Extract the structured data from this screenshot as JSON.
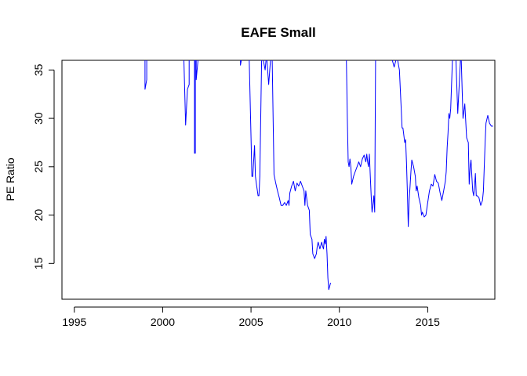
{
  "chart_data": {
    "type": "line",
    "title": "EAFE Small",
    "xlabel": "",
    "ylabel": "PE Ratio",
    "xlim": [
      1994.3,
      2018.8
    ],
    "ylim": [
      11.3,
      36.0
    ],
    "xticks": [
      1995,
      2000,
      2005,
      2010,
      2015
    ],
    "yticks": [
      15,
      20,
      25,
      30,
      35
    ],
    "grid": false,
    "series": [
      {
        "color": "#0000ff",
        "segments": [
          [
            [
              1999.0,
              36.0
            ],
            [
              1999.0,
              33.0
            ],
            [
              1999.1,
              34.0
            ],
            [
              1999.1,
              36.0
            ]
          ],
          [
            [
              2001.2,
              36.0
            ],
            [
              2001.3,
              29.3
            ],
            [
              2001.4,
              33.0
            ],
            [
              2001.5,
              33.5
            ],
            [
              2001.5,
              36.0
            ]
          ],
          [
            [
              2001.8,
              36.0
            ],
            [
              2001.8,
              26.4
            ],
            [
              2001.85,
              26.4
            ],
            [
              2001.85,
              36.0
            ]
          ],
          [
            [
              2001.9,
              36.0
            ],
            [
              2001.9,
              34.0
            ],
            [
              2002.0,
              36.0
            ]
          ],
          [
            [
              2004.4,
              36.0
            ],
            [
              2004.4,
              35.5
            ],
            [
              2004.45,
              36.0
            ]
          ],
          [
            [
              2004.9,
              36.0
            ],
            [
              2005.0,
              28.0
            ],
            [
              2005.05,
              24.0
            ],
            [
              2005.1,
              24.0
            ],
            [
              2005.2,
              27.2
            ],
            [
              2005.25,
              24.0
            ],
            [
              2005.3,
              23.3
            ],
            [
              2005.4,
              22.0
            ],
            [
              2005.45,
              22.0
            ],
            [
              2005.5,
              24.0
            ],
            [
              2005.6,
              36.0
            ]
          ],
          [
            [
              2005.7,
              36.0
            ],
            [
              2005.8,
              35.0
            ],
            [
              2005.85,
              36.0
            ]
          ],
          [
            [
              2005.9,
              36.0
            ],
            [
              2006.0,
              33.5
            ],
            [
              2006.1,
              36.0
            ]
          ],
          [
            [
              2006.2,
              36.0
            ],
            [
              2006.3,
              24.2
            ],
            [
              2006.4,
              23.3
            ],
            [
              2006.5,
              22.5
            ],
            [
              2006.6,
              21.8
            ],
            [
              2006.7,
              21.0
            ],
            [
              2006.8,
              21.0
            ],
            [
              2006.9,
              21.3
            ],
            [
              2007.0,
              21.0
            ],
            [
              2007.1,
              21.5
            ],
            [
              2007.15,
              21.0
            ],
            [
              2007.2,
              22.3
            ],
            [
              2007.3,
              23.0
            ],
            [
              2007.4,
              23.5
            ],
            [
              2007.5,
              22.5
            ],
            [
              2007.6,
              23.3
            ],
            [
              2007.7,
              23.0
            ],
            [
              2007.8,
              23.5
            ],
            [
              2007.9,
              23.0
            ],
            [
              2008.0,
              22.5
            ],
            [
              2008.05,
              21.0
            ],
            [
              2008.1,
              22.5
            ],
            [
              2008.2,
              21.0
            ],
            [
              2008.3,
              20.5
            ],
            [
              2008.35,
              18.0
            ],
            [
              2008.45,
              17.5
            ],
            [
              2008.5,
              16.0
            ],
            [
              2008.6,
              15.5
            ],
            [
              2008.7,
              16.0
            ],
            [
              2008.75,
              16.8
            ],
            [
              2008.8,
              17.2
            ],
            [
              2008.9,
              16.5
            ],
            [
              2009.0,
              17.2
            ],
            [
              2009.05,
              16.8
            ],
            [
              2009.1,
              16.5
            ],
            [
              2009.15,
              17.5
            ],
            [
              2009.2,
              17.0
            ],
            [
              2009.25,
              17.8
            ],
            [
              2009.3,
              16.0
            ],
            [
              2009.35,
              13.5
            ],
            [
              2009.4,
              12.3
            ],
            [
              2009.45,
              12.6
            ],
            [
              2009.5,
              13.0
            ]
          ],
          [
            [
              2010.4,
              36.0
            ],
            [
              2010.45,
              30.0
            ],
            [
              2010.5,
              25.5
            ],
            [
              2010.55,
              25.0
            ],
            [
              2010.6,
              25.8
            ],
            [
              2010.65,
              25.0
            ],
            [
              2010.7,
              23.2
            ],
            [
              2010.8,
              24.0
            ],
            [
              2010.9,
              24.5
            ],
            [
              2011.0,
              25.0
            ],
            [
              2011.1,
              25.5
            ],
            [
              2011.2,
              25.0
            ],
            [
              2011.3,
              25.8
            ],
            [
              2011.4,
              26.2
            ],
            [
              2011.5,
              25.5
            ],
            [
              2011.55,
              26.3
            ],
            [
              2011.6,
              25.5
            ],
            [
              2011.65,
              25.0
            ],
            [
              2011.7,
              26.3
            ],
            [
              2011.75,
              24.0
            ],
            [
              2011.8,
              22.0
            ],
            [
              2011.85,
              20.3
            ],
            [
              2011.9,
              21.0
            ],
            [
              2011.95,
              22.0
            ],
            [
              2012.0,
              20.3
            ],
            [
              2012.05,
              36.0
            ]
          ],
          [
            [
              2013.0,
              36.0
            ],
            [
              2013.1,
              35.3
            ],
            [
              2013.2,
              36.0
            ]
          ],
          [
            [
              2013.3,
              36.0
            ],
            [
              2013.4,
              35.0
            ],
            [
              2013.5,
              31.0
            ],
            [
              2013.55,
              29.0
            ],
            [
              2013.6,
              29.0
            ],
            [
              2013.7,
              27.5
            ],
            [
              2013.75,
              27.8
            ],
            [
              2013.8,
              25.5
            ],
            [
              2013.85,
              22.3
            ],
            [
              2013.9,
              18.8
            ],
            [
              2013.95,
              21.5
            ],
            [
              2014.0,
              23.0
            ],
            [
              2014.05,
              24.5
            ],
            [
              2014.1,
              25.7
            ],
            [
              2014.2,
              25.0
            ],
            [
              2014.3,
              24.0
            ],
            [
              2014.35,
              22.5
            ],
            [
              2014.4,
              23.0
            ],
            [
              2014.5,
              21.8
            ],
            [
              2014.6,
              21.0
            ],
            [
              2014.65,
              20.0
            ],
            [
              2014.7,
              20.3
            ],
            [
              2014.8,
              19.8
            ],
            [
              2014.9,
              20.0
            ],
            [
              2015.0,
              21.3
            ],
            [
              2015.1,
              22.5
            ],
            [
              2015.2,
              23.2
            ],
            [
              2015.3,
              23.0
            ],
            [
              2015.4,
              24.2
            ],
            [
              2015.5,
              23.5
            ],
            [
              2015.6,
              23.3
            ],
            [
              2015.7,
              22.3
            ],
            [
              2015.8,
              21.5
            ],
            [
              2015.9,
              22.5
            ],
            [
              2016.0,
              23.5
            ],
            [
              2016.05,
              24.5
            ],
            [
              2016.1,
              27.0
            ],
            [
              2016.15,
              28.5
            ],
            [
              2016.2,
              30.5
            ],
            [
              2016.25,
              30.0
            ],
            [
              2016.3,
              31.0
            ],
            [
              2016.35,
              33.5
            ],
            [
              2016.4,
              36.0
            ]
          ],
          [
            [
              2016.6,
              36.0
            ],
            [
              2016.7,
              30.5
            ],
            [
              2016.8,
              34.0
            ],
            [
              2016.85,
              36.0
            ]
          ],
          [
            [
              2016.9,
              36.0
            ],
            [
              2017.0,
              30.0
            ],
            [
              2017.1,
              31.5
            ],
            [
              2017.2,
              28.0
            ],
            [
              2017.3,
              27.5
            ],
            [
              2017.35,
              23.2
            ],
            [
              2017.4,
              25.0
            ],
            [
              2017.45,
              25.7
            ],
            [
              2017.5,
              24.0
            ],
            [
              2017.55,
              22.5
            ],
            [
              2017.6,
              22.0
            ],
            [
              2017.65,
              23.0
            ],
            [
              2017.7,
              24.3
            ],
            [
              2017.75,
              22.0
            ],
            [
              2017.8,
              22.0
            ],
            [
              2017.9,
              21.8
            ],
            [
              2018.0,
              21.0
            ],
            [
              2018.1,
              21.5
            ],
            [
              2018.15,
              22.5
            ],
            [
              2018.2,
              25.0
            ],
            [
              2018.25,
              27.5
            ],
            [
              2018.3,
              29.5
            ],
            [
              2018.4,
              30.3
            ],
            [
              2018.5,
              29.5
            ],
            [
              2018.6,
              29.2
            ],
            [
              2018.7,
              29.2
            ]
          ]
        ]
      }
    ]
  }
}
